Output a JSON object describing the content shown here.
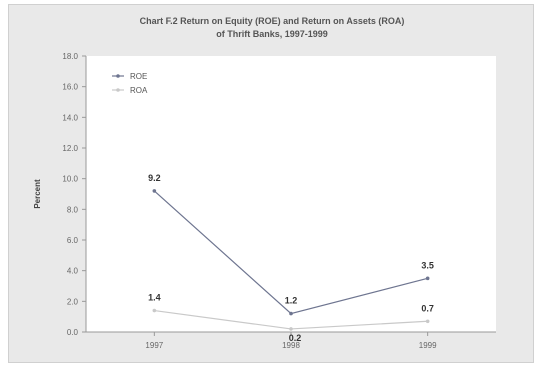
{
  "chart_data": {
    "type": "line",
    "title_line1": "Chart F.2 Return on Equity (ROE) and Return on Assets (ROA)",
    "title_line2": "of Thrift Banks, 1997-1999",
    "ylabel": "Percent",
    "xlabel": "",
    "categories": [
      "1997",
      "1998",
      "1999"
    ],
    "ylim": [
      0,
      18
    ],
    "yticks": [
      "0.0",
      "2.0",
      "4.0",
      "6.0",
      "8.0",
      "10.0",
      "12.0",
      "14.0",
      "16.0",
      "18.0"
    ],
    "grid": false,
    "legend_position": "top-left",
    "series": [
      {
        "name": "ROE",
        "values": [
          9.2,
          1.2,
          3.5
        ],
        "labels": [
          "9.2",
          "1.2",
          "3.5"
        ],
        "color": "#6e7590"
      },
      {
        "name": "ROA",
        "values": [
          1.4,
          0.2,
          0.7
        ],
        "labels": [
          "1.4",
          "0.2",
          "0.7"
        ],
        "color": "#c9c9c9"
      }
    ]
  }
}
